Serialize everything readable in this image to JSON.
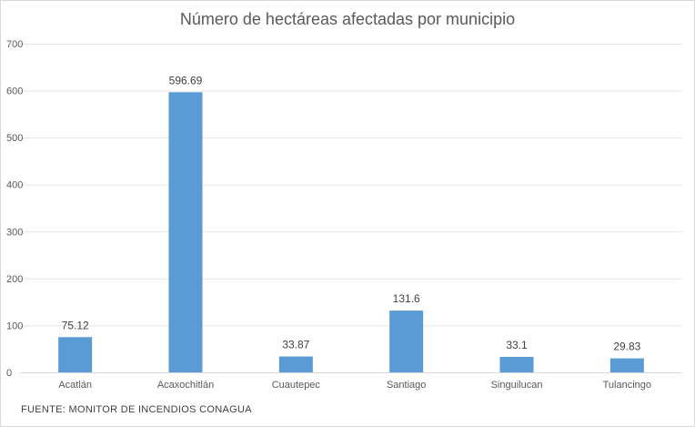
{
  "chart_data": {
    "type": "bar",
    "title": "Número de hectáreas afectadas por municipio",
    "categories": [
      "Acatlán",
      "Acaxochitlán",
      "Cuautepec",
      "Santiago",
      "Singuilucan",
      "Tulancingo"
    ],
    "values": [
      75.12,
      596.69,
      33.87,
      131.6,
      33.1,
      29.83
    ],
    "data_labels": [
      "75.12",
      "596.69",
      "33.87",
      "131.6",
      "33.1",
      "29.83"
    ],
    "ylim": [
      0,
      700
    ],
    "y_ticks": [
      "0",
      "100",
      "200",
      "300",
      "400",
      "500",
      "600",
      "700"
    ],
    "xlabel": "",
    "ylabel": "",
    "grid": true,
    "legend": "none",
    "bar_color": "#5B9BD5"
  },
  "footer": {
    "source": "FUENTE:  MONITOR DE INCENDIOS CONAGUA"
  }
}
